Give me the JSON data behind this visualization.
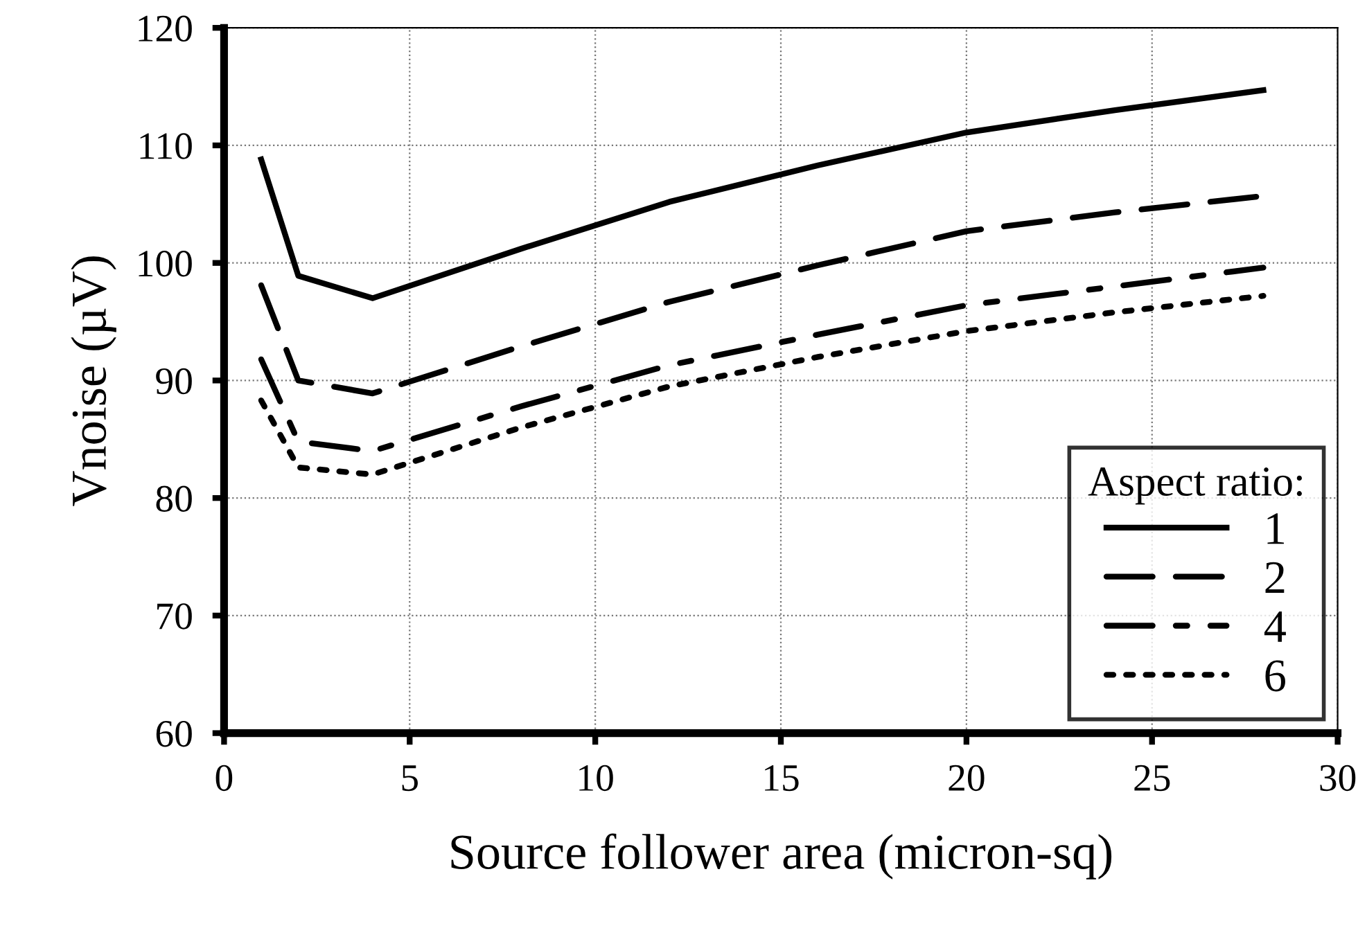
{
  "chart_data": {
    "type": "line",
    "xlabel": "Source follower area (micron-sq)",
    "ylabel": "Vnoise (µV)",
    "legend_title": "Aspect ratio:",
    "legend": "bottom right",
    "grid": true,
    "xlim": [
      0,
      30
    ],
    "xticks": [
      0,
      5,
      10,
      15,
      20,
      25,
      30
    ],
    "ylim": [
      60,
      120
    ],
    "yticks": [
      60,
      70,
      80,
      90,
      100,
      110,
      120
    ],
    "x": [
      1,
      2,
      4,
      8,
      12,
      16,
      20,
      24,
      28
    ],
    "series": [
      {
        "name": "1",
        "color": "#000000",
        "line_style": "solid",
        "values": [
          108.8,
          98.9,
          97.0,
          101.2,
          105.2,
          108.3,
          111.1,
          113.0,
          114.7
        ]
      },
      {
        "name": "2",
        "color": "#000000",
        "line_style": "dashed",
        "values": [
          98.1,
          90.0,
          88.9,
          92.9,
          96.7,
          99.8,
          102.7,
          104.3,
          105.7
        ]
      },
      {
        "name": "4",
        "color": "#000000",
        "line_style": "dashdot",
        "values": [
          91.8,
          84.8,
          84.0,
          87.8,
          91.3,
          93.9,
          96.4,
          98.0,
          99.6
        ]
      },
      {
        "name": "6",
        "color": "#000000",
        "line_style": "dotted",
        "values": [
          88.3,
          82.6,
          82.0,
          86.0,
          89.5,
          92.0,
          94.2,
          95.8,
          97.2
        ]
      }
    ]
  }
}
